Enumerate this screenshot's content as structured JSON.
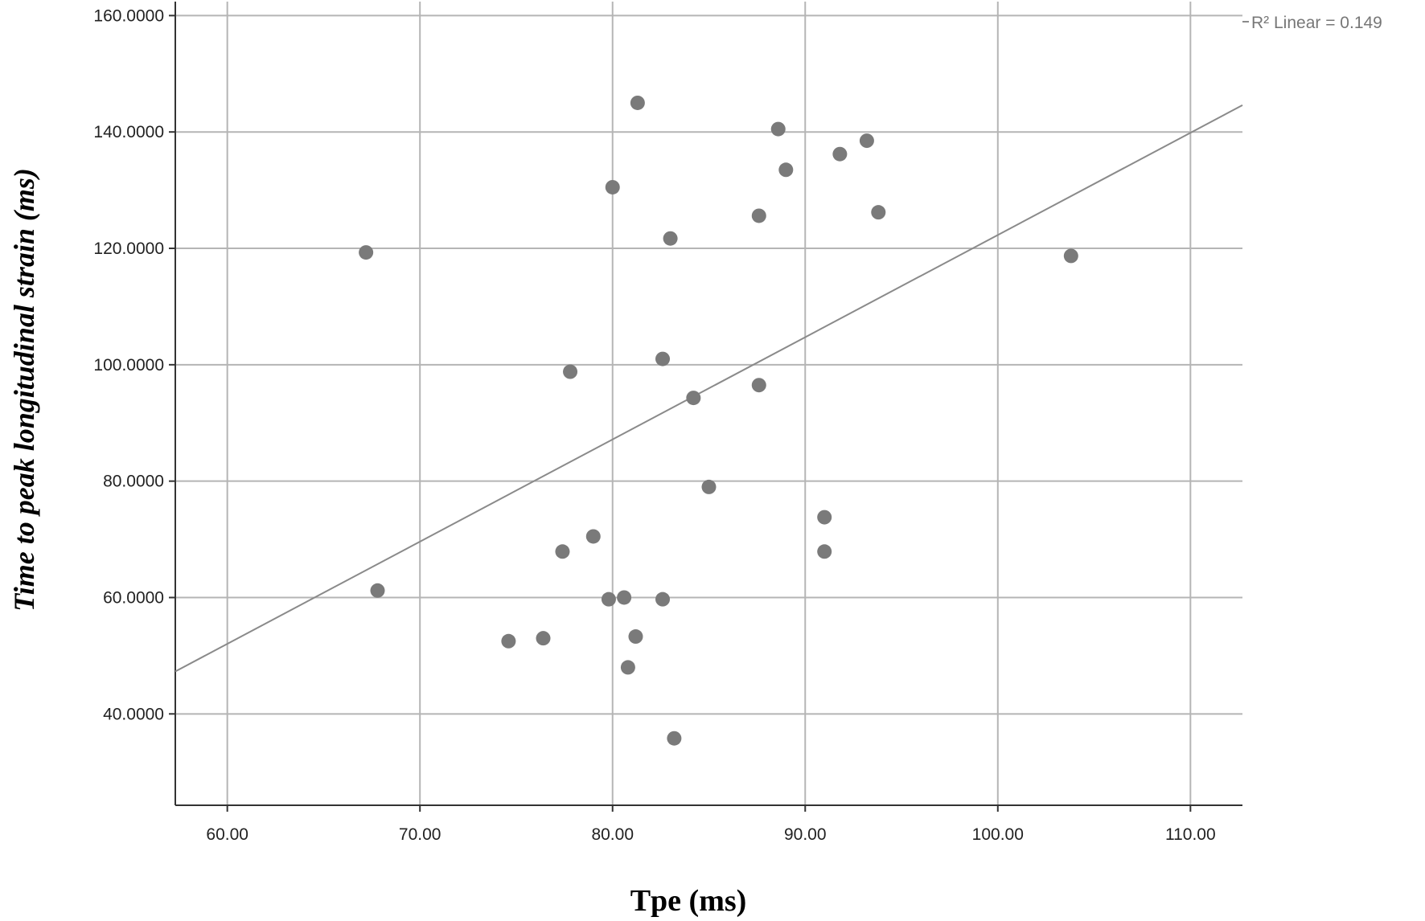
{
  "chart_data": {
    "type": "scatter",
    "xlabel": "Tpe (ms)",
    "ylabel": "Time to peak longitudinal strain (ms)",
    "xlim": [
      57.3,
      112.7
    ],
    "ylim": [
      24.3,
      162.4
    ],
    "x_ticks": [
      60,
      70,
      80,
      90,
      100,
      110
    ],
    "x_tick_labels": [
      "60.00",
      "70.00",
      "80.00",
      "90.00",
      "100.00",
      "110.00"
    ],
    "y_ticks": [
      40,
      60,
      80,
      100,
      120,
      140,
      160
    ],
    "y_tick_labels": [
      "40.0000",
      "60.0000",
      "80.0000",
      "100.0000",
      "120.0000",
      "140.0000",
      "160.0000"
    ],
    "grid": true,
    "points": [
      {
        "x": 81.3,
        "y": 145.0
      },
      {
        "x": 88.6,
        "y": 140.5
      },
      {
        "x": 93.2,
        "y": 138.5
      },
      {
        "x": 91.8,
        "y": 136.2
      },
      {
        "x": 89.0,
        "y": 133.5
      },
      {
        "x": 80.0,
        "y": 130.5
      },
      {
        "x": 93.8,
        "y": 126.2
      },
      {
        "x": 87.6,
        "y": 125.6
      },
      {
        "x": 83.0,
        "y": 121.7
      },
      {
        "x": 67.2,
        "y": 119.3
      },
      {
        "x": 103.8,
        "y": 118.7
      },
      {
        "x": 82.6,
        "y": 101.0
      },
      {
        "x": 77.8,
        "y": 98.8
      },
      {
        "x": 87.6,
        "y": 96.5
      },
      {
        "x": 84.2,
        "y": 94.3
      },
      {
        "x": 85.0,
        "y": 79.0
      },
      {
        "x": 91.0,
        "y": 73.8
      },
      {
        "x": 79.0,
        "y": 70.5
      },
      {
        "x": 77.4,
        "y": 67.9
      },
      {
        "x": 91.0,
        "y": 67.9
      },
      {
        "x": 67.8,
        "y": 61.2
      },
      {
        "x": 80.6,
        "y": 60.0
      },
      {
        "x": 79.8,
        "y": 59.7
      },
      {
        "x": 82.6,
        "y": 59.7
      },
      {
        "x": 81.2,
        "y": 53.3
      },
      {
        "x": 76.4,
        "y": 53.0
      },
      {
        "x": 74.6,
        "y": 52.5
      },
      {
        "x": 80.8,
        "y": 48.0
      },
      {
        "x": 83.2,
        "y": 35.8
      }
    ],
    "fit_line": {
      "x": [
        57.3,
        112.7
      ],
      "y": [
        47.3,
        144.6
      ]
    },
    "annotation": "R² Linear = 0.149",
    "colors": {
      "points": "#7a7a7a",
      "grid": "#b5b5b5",
      "fit": "#8a8a8a",
      "axis": "#333333"
    }
  }
}
